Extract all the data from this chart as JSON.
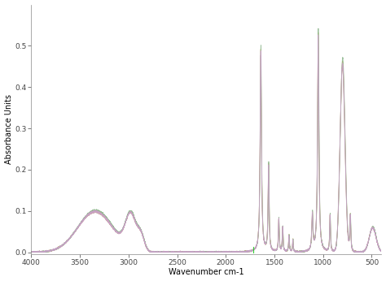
{
  "title": "",
  "xlabel": "Wavenumber cm-1",
  "ylabel": "Absorbance Units",
  "xlim": [
    4000,
    400
  ],
  "ylim": [
    -0.005,
    0.6
  ],
  "yticks": [
    0.0,
    0.1,
    0.2,
    0.3,
    0.4,
    0.5
  ],
  "xticks": [
    4000,
    3500,
    3000,
    2500,
    2000,
    1500,
    1000,
    500
  ],
  "background_color": "#ffffff",
  "line_colors": [
    "#b8a840",
    "#c8a0a8",
    "#90b890",
    "#c8a0c8"
  ],
  "line_width": 0.6
}
